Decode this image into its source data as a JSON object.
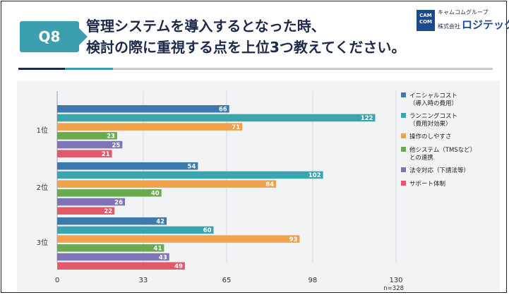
{
  "header": {
    "badge": "Q8",
    "title_line1": "管理システムを導入するとなった時、",
    "title_line2": "検討の際に重視する点を上位3つ教えてください。"
  },
  "logo": {
    "mark_line1": "CAM",
    "mark_line2": "COM",
    "sub": "キャムコムグループ",
    "prefix": "株式会社",
    "name": "ロジテック"
  },
  "colors": {
    "navy": "#1e2a4a",
    "teal": "#3b9fb0",
    "rule_light": "#c8ccd2"
  },
  "chart_data": {
    "type": "bar",
    "orientation": "horizontal",
    "categories": [
      "1位",
      "2位",
      "3位"
    ],
    "series": [
      {
        "name": "イニシャルコスト\n（導入時の費用）",
        "color": "#3d79ad",
        "values": [
          66,
          54,
          42
        ]
      },
      {
        "name": "ランニングコスト\n（費用対効果）",
        "color": "#3aa5ad",
        "values": [
          122,
          102,
          60
        ]
      },
      {
        "name": "操作のしやすさ",
        "color": "#f0a24a",
        "values": [
          71,
          84,
          93
        ]
      },
      {
        "name": "他システム（TMSなど）\nとの連携",
        "color": "#6aab4f",
        "values": [
          23,
          40,
          41
        ]
      },
      {
        "name": "法令対応（下請法等）",
        "color": "#7e74b7",
        "values": [
          25,
          26,
          43
        ]
      },
      {
        "name": "サポート体制",
        "color": "#e05a6a",
        "values": [
          21,
          22,
          49
        ]
      }
    ],
    "xticks": [
      "0",
      "33",
      "65",
      "98",
      "130"
    ],
    "xlim": [
      0,
      130
    ],
    "note": "n=328",
    "legend_position": "right",
    "grid": true
  }
}
